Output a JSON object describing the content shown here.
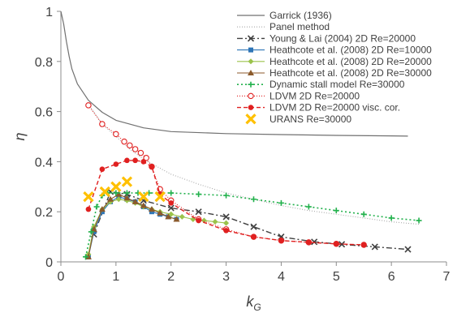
{
  "chart_data": {
    "type": "line",
    "xlabel": "k",
    "xlabel_sub": "G",
    "ylabel": "η",
    "xlim": [
      0,
      7
    ],
    "ylim": [
      0,
      1
    ],
    "xticks": [
      0,
      1,
      2,
      3,
      4,
      5,
      6,
      7
    ],
    "yticks": [
      0,
      0.2,
      0.4,
      0.6,
      0.8,
      1
    ],
    "ytick_labels": [
      "0",
      "0.2",
      "0.4",
      "0.6",
      "0.8",
      "1"
    ],
    "legend_position": "top-right",
    "grid": false,
    "series": [
      {
        "name": "Garrick (1936)",
        "color": "#707070",
        "dash": "",
        "width": 1.2,
        "marker": "none",
        "x": [
          0,
          0.05,
          0.1,
          0.15,
          0.2,
          0.3,
          0.5,
          0.75,
          1.0,
          1.5,
          2.0,
          3.0,
          4.0,
          5.0,
          6.0,
          6.3
        ],
        "y": [
          1.0,
          0.95,
          0.88,
          0.82,
          0.77,
          0.71,
          0.645,
          0.597,
          0.565,
          0.535,
          0.52,
          0.512,
          0.508,
          0.505,
          0.503,
          0.502
        ]
      },
      {
        "name": "Panel method",
        "color": "#a8a8a8",
        "dash": "1,2",
        "width": 1.1,
        "marker": "none",
        "x": [
          0.5,
          0.75,
          1.0,
          1.25,
          1.5,
          2.0,
          2.5,
          3.0,
          3.5,
          4.0,
          4.5,
          5.0,
          5.5,
          6.0,
          6.5
        ],
        "y": [
          0.63,
          0.55,
          0.5,
          0.45,
          0.41,
          0.35,
          0.31,
          0.275,
          0.25,
          0.225,
          0.205,
          0.19,
          0.175,
          0.16,
          0.15
        ]
      },
      {
        "name": "Young & Lai (2004) 2D Re=20000",
        "color": "#404040",
        "dash": "7,3,2,3",
        "width": 1.4,
        "marker": "x",
        "x": [
          0.6,
          0.9,
          1.2,
          1.5,
          2.0,
          2.5,
          3.0,
          3.5,
          4.0,
          4.6,
          5.1,
          5.7,
          6.3
        ],
        "y": [
          0.11,
          0.28,
          0.27,
          0.245,
          0.215,
          0.2,
          0.18,
          0.14,
          0.1,
          0.08,
          0.07,
          0.06,
          0.05
        ]
      },
      {
        "name": "Heathcote et al. (2008) 2D Re=10000",
        "color": "#2e75b6",
        "dash": "",
        "width": 1.1,
        "marker": "square",
        "x": [
          0.5,
          0.6,
          0.75,
          0.9,
          1.05,
          1.2,
          1.35,
          1.5,
          1.65,
          1.8,
          1.95,
          2.1
        ],
        "y": [
          0.02,
          0.12,
          0.2,
          0.24,
          0.26,
          0.25,
          0.24,
          0.22,
          0.2,
          0.19,
          0.18,
          0.17
        ]
      },
      {
        "name": "Heathcote et al. (2008) 2D Re=20000",
        "color": "#9bc34b",
        "dash": "",
        "width": 1.1,
        "marker": "diamond",
        "x": [
          0.5,
          0.6,
          0.75,
          0.9,
          1.05,
          1.2,
          1.35,
          1.5,
          1.65,
          1.8,
          2.0,
          2.2,
          2.4,
          2.6,
          2.8,
          3.0
        ],
        "y": [
          0.03,
          0.14,
          0.21,
          0.24,
          0.25,
          0.245,
          0.235,
          0.22,
          0.21,
          0.2,
          0.19,
          0.18,
          0.17,
          0.165,
          0.16,
          0.155
        ]
      },
      {
        "name": "Heathcote et al. (2008) 2D Re=30000",
        "color": "#8b5a2b",
        "dash": "",
        "width": 1.1,
        "marker": "triangle",
        "x": [
          0.5,
          0.6,
          0.75,
          0.9,
          1.05,
          1.2,
          1.35,
          1.5,
          1.65,
          1.8,
          1.95,
          2.1
        ],
        "y": [
          0.02,
          0.13,
          0.21,
          0.25,
          0.27,
          0.255,
          0.24,
          0.225,
          0.21,
          0.195,
          0.18,
          0.17
        ]
      },
      {
        "name": "Dynamic stall model Re=30000",
        "color": "#22b14c",
        "dash": "2,3",
        "width": 1.6,
        "marker": "plus",
        "x": [
          0.45,
          0.55,
          0.65,
          0.75,
          0.85,
          1.0,
          1.2,
          1.4,
          1.6,
          1.8,
          2.0,
          2.5,
          3.0,
          3.5,
          4.0,
          4.5,
          5.0,
          5.5,
          6.0,
          6.5
        ],
        "y": [
          0.02,
          0.12,
          0.22,
          0.265,
          0.275,
          0.275,
          0.275,
          0.275,
          0.275,
          0.275,
          0.275,
          0.27,
          0.265,
          0.25,
          0.235,
          0.22,
          0.205,
          0.19,
          0.175,
          0.165
        ]
      },
      {
        "name": "LDVM 2D Re=20000",
        "color": "#e02020",
        "dash": "1,2",
        "width": 1.1,
        "marker": "open-circle",
        "x": [
          0.5,
          0.75,
          1.0,
          1.15,
          1.25,
          1.35,
          1.45,
          1.55,
          1.65,
          1.8,
          2.0,
          2.5,
          3.0,
          3.5,
          4.0,
          4.5,
          5.0,
          5.5
        ],
        "y": [
          0.625,
          0.55,
          0.51,
          0.48,
          0.465,
          0.45,
          0.435,
          0.415,
          0.38,
          0.29,
          0.245,
          0.17,
          0.13,
          0.1,
          0.085,
          0.078,
          0.072,
          0.068
        ]
      },
      {
        "name": "LDVM 2D Re=20000 visc. cor.",
        "color": "#e02020",
        "dash": "5,3",
        "width": 1.4,
        "marker": "circle",
        "x": [
          0.5,
          0.75,
          1.0,
          1.2,
          1.35,
          1.5,
          1.65,
          1.8,
          2.0,
          2.5,
          3.0,
          3.5,
          4.0,
          4.5,
          5.0,
          5.5
        ],
        "y": [
          0.21,
          0.37,
          0.39,
          0.405,
          0.405,
          0.4,
          0.38,
          0.27,
          0.235,
          0.165,
          0.125,
          0.1,
          0.085,
          0.078,
          0.072,
          0.068
        ]
      },
      {
        "name": "URANS Re=30000",
        "color": "#ffc000",
        "dash": "none",
        "width": 0,
        "marker": "bigx",
        "x": [
          0.5,
          0.8,
          1.0,
          1.2,
          1.5,
          1.8
        ],
        "y": [
          0.26,
          0.28,
          0.3,
          0.32,
          0.26,
          0.26
        ]
      }
    ]
  }
}
